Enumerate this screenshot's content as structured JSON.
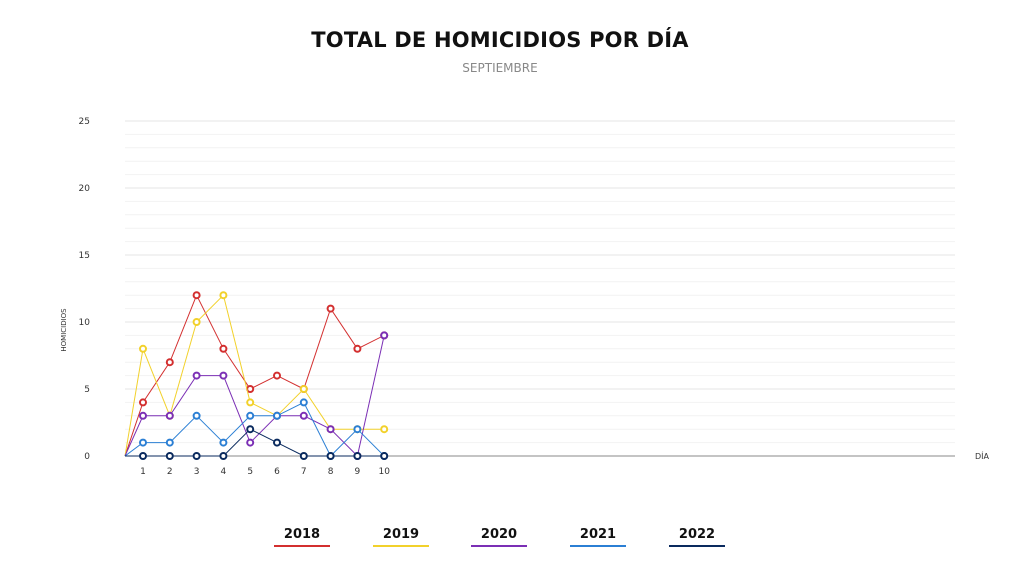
{
  "title": "TOTAL DE HOMICIDIOS POR DÍA",
  "subtitle": "SEPTIEMBRE",
  "colors": {
    "2018": "#d32f2f",
    "2019": "#f2d12b",
    "2020": "#7b2fb5",
    "2021": "#2b7fd4",
    "2022": "#0a2a5e"
  },
  "chart_data": {
    "type": "line",
    "title": "TOTAL DE HOMICIDIOS POR DÍA",
    "subtitle": "SEPTIEMBRE",
    "xlabel": "DÍA",
    "ylabel": "HOMICIDIOS",
    "x": [
      1,
      2,
      3,
      4,
      5,
      6,
      7,
      8,
      9,
      10
    ],
    "x_ticks": [
      "1",
      "2",
      "3",
      "4",
      "5",
      "6",
      "7",
      "8",
      "9",
      "10"
    ],
    "y_ticks": [
      "0",
      "5",
      "10",
      "15",
      "20",
      "25"
    ],
    "ylim": [
      0,
      25
    ],
    "grid": true,
    "legend": "bottom",
    "series": [
      {
        "name": "2018",
        "values": [
          4,
          7,
          12,
          8,
          5,
          6,
          5,
          11,
          8,
          9
        ]
      },
      {
        "name": "2019",
        "values": [
          8,
          3,
          10,
          12,
          4,
          3,
          5,
          2,
          2,
          2
        ]
      },
      {
        "name": "2020",
        "values": [
          3,
          3,
          6,
          6,
          1,
          3,
          3,
          2,
          0,
          9
        ]
      },
      {
        "name": "2021",
        "values": [
          1,
          1,
          3,
          1,
          3,
          3,
          4,
          0,
          2,
          0
        ]
      },
      {
        "name": "2022",
        "values": [
          0,
          0,
          0,
          0,
          2,
          1,
          0,
          0,
          0,
          0
        ]
      }
    ]
  }
}
